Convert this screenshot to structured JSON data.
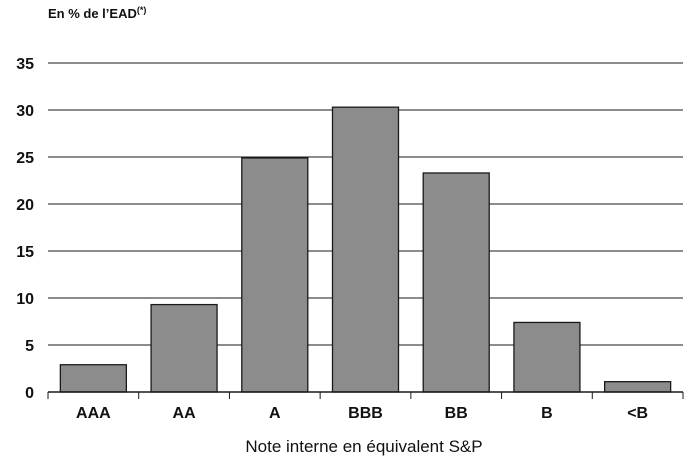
{
  "chart_data": {
    "type": "bar",
    "unit_label": "En % de l’EAD",
    "unit_label_superscript": "(*)",
    "xlabel": "Note interne en équivalent S&P",
    "ylabel": "",
    "categories": [
      "AAA",
      "AA",
      "A",
      "BBB",
      "BB",
      "B",
      "<B"
    ],
    "values": [
      2.9,
      9.3,
      24.9,
      30.3,
      23.3,
      7.4,
      1.1
    ],
    "ylim": [
      0,
      35
    ],
    "yticks": [
      0,
      5,
      10,
      15,
      20,
      25,
      30,
      35
    ],
    "grid": true,
    "colors": {
      "bar_fill": "#8c8c8c",
      "bar_stroke": "#1a1a1a",
      "grid": "#1a1a1a"
    }
  }
}
